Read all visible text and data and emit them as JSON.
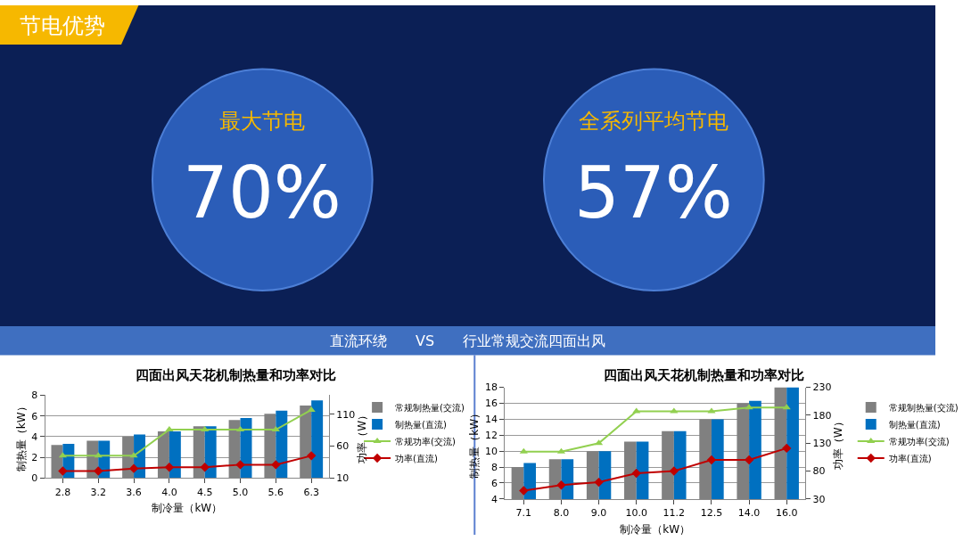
{
  "chart_data": [
    {
      "type": "other",
      "title": "节电优势",
      "annotations": [
        "最大节电",
        "70%",
        "全系列平均节电",
        "57%",
        "直流环绕　　VS　　行业常规交流四面出风"
      ]
    },
    {
      "type": "bar",
      "title": "四面出风天花机制热量和功率对比",
      "xlabel": "制冷量（kW）",
      "ylabel": "制热量（kW）",
      "y2label": "功率（W）",
      "categories": [
        "2.8",
        "3.2",
        "3.6",
        "4.0",
        "4.5",
        "5.0",
        "5.6",
        "6.3"
      ],
      "series": [
        {
          "name": "常规制热量(交流)",
          "color": "#808080",
          "values": [
            3.2,
            3.6,
            4.0,
            4.5,
            5.0,
            5.6,
            6.2,
            7.0
          ]
        },
        {
          "name": "制热量(直流)",
          "color": "#0070c0",
          "values": [
            3.3,
            3.6,
            4.2,
            4.5,
            5.0,
            5.8,
            6.5,
            7.5
          ]
        },
        {
          "name": "常规功率(交流)",
          "color": "#92d050",
          "type": "line",
          "axis": "y2",
          "marker": "triangle",
          "values": [
            45,
            45,
            45,
            86,
            86,
            86,
            86,
            117
          ]
        },
        {
          "name": "功率(直流)",
          "color": "#c00000",
          "type": "line",
          "axis": "y2",
          "marker": "diamond",
          "values": [
            21,
            21,
            25,
            27,
            27,
            31,
            31,
            45
          ]
        }
      ],
      "ylim": [
        0,
        8
      ],
      "yticks": [
        0,
        2,
        4,
        6,
        8
      ],
      "y2lim": [
        10,
        140
      ],
      "y2ticks": [
        10,
        60,
        110
      ],
      "grid": "y",
      "legend": "right"
    },
    {
      "type": "bar",
      "title": "四面出风天花机制热量和功率对比",
      "xlabel": "制冷量（kW）",
      "ylabel": "制热量（kW）",
      "y2label": "功率（W）",
      "categories": [
        "7.1",
        "8.0",
        "9.0",
        "10.0",
        "11.2",
        "12.5",
        "14.0",
        "16.0"
      ],
      "series": [
        {
          "name": "常规制热量(交流)",
          "color": "#808080",
          "values": [
            8,
            9,
            10,
            11.2,
            12.5,
            14,
            16,
            18
          ]
        },
        {
          "name": "制热量(直流)",
          "color": "#0070c0",
          "values": [
            8.5,
            9,
            10,
            11.2,
            12.5,
            14,
            16.3,
            18
          ]
        },
        {
          "name": "常规功率(交流)",
          "color": "#92d050",
          "type": "line",
          "axis": "y2",
          "marker": "triangle",
          "values": [
            115,
            115,
            130,
            187,
            187,
            187,
            194,
            194
          ]
        },
        {
          "name": "功率(直流)",
          "color": "#c00000",
          "type": "line",
          "axis": "y2",
          "marker": "diamond",
          "values": [
            45,
            55,
            60,
            76,
            80,
            100,
            100,
            121
          ]
        }
      ],
      "ylim": [
        4,
        18
      ],
      "yticks": [
        4,
        6,
        8,
        10,
        12,
        14,
        16,
        18
      ],
      "y2lim": [
        30,
        230
      ],
      "y2ticks": [
        30,
        80,
        130,
        180,
        230
      ],
      "grid": "y",
      "legend": "right"
    }
  ]
}
